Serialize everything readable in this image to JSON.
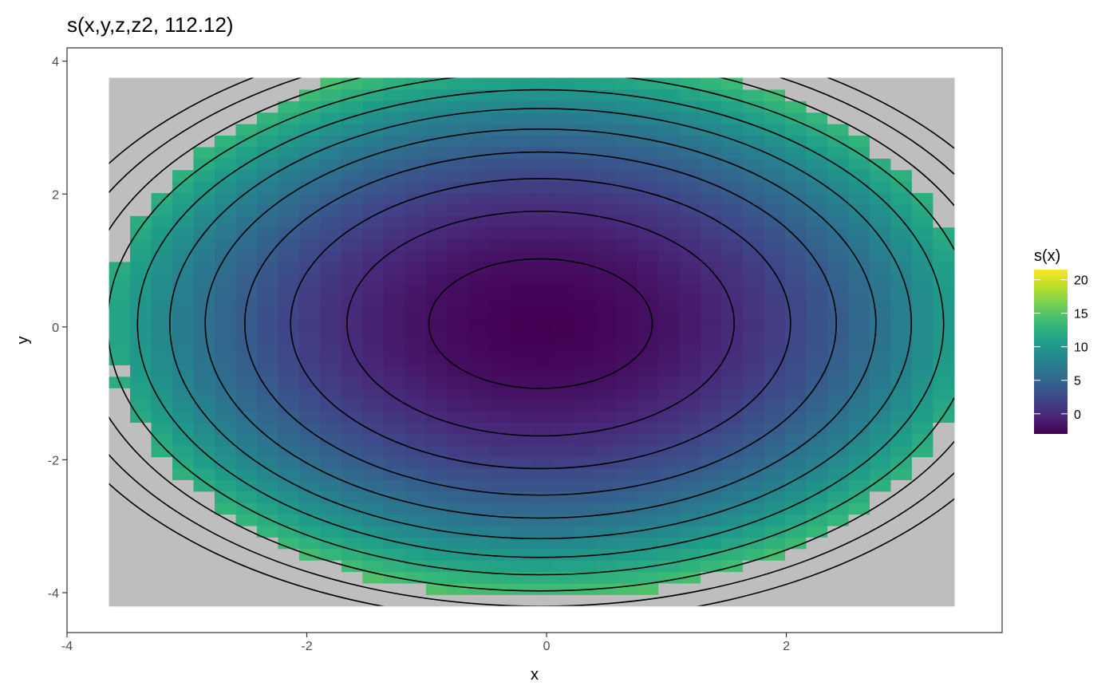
{
  "chart_data": {
    "type": "heatmap",
    "title": "s(x,y,z,z2, 112.12)",
    "xlabel": "x",
    "ylabel": "y",
    "xlim": [
      -4,
      3.8
    ],
    "ylim": [
      -4.6,
      4.2
    ],
    "x_ticks": [
      -4,
      -2,
      0,
      2
    ],
    "y_ticks": [
      -4,
      -2,
      0,
      2,
      4
    ],
    "x_tick_labels": [
      "-4",
      "-2",
      "0",
      "2"
    ],
    "y_tick_labels": [
      "-4",
      "-2",
      "0",
      "2",
      "4"
    ],
    "grid": false,
    "surface": {
      "x_range": [
        -3.65,
        3.4
      ],
      "y_range": [
        -4.2,
        3.75
      ],
      "cols": 40,
      "rows": 46,
      "center": [
        -0.05,
        0.05
      ],
      "model": "s(x,y) ≈ 1.15·(x+0.05)² + 1.05·(y−0.05)² − 3"
    },
    "contour_levels": [
      -2,
      0,
      2,
      4,
      6,
      8,
      10,
      12,
      14,
      16,
      18
    ],
    "missing_color": "#bebebe",
    "colorscale": {
      "name": "viridis",
      "min": -3,
      "max": 21.5,
      "stops": [
        "#440154",
        "#482878",
        "#3e4a89",
        "#31688e",
        "#26828e",
        "#1f9e89",
        "#35b779",
        "#6ece58",
        "#b5de2b",
        "#fde725"
      ]
    },
    "legend": {
      "title": "s(x)",
      "ticks": [
        0,
        5,
        10,
        15,
        20
      ],
      "tick_labels": [
        "0",
        "5",
        "10",
        "15",
        "20"
      ],
      "position": "right"
    }
  }
}
